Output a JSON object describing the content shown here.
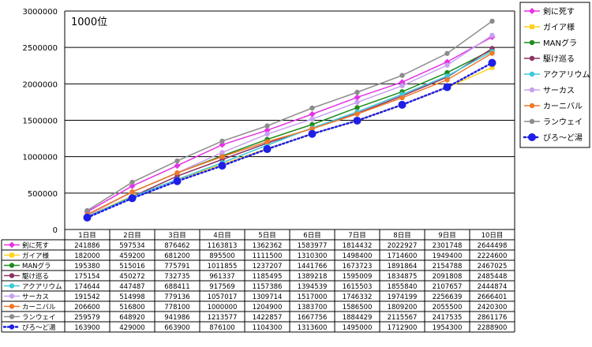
{
  "chart_data": {
    "type": "line",
    "annotation": "1000位",
    "categories": [
      "1日目",
      "2日目",
      "3日目",
      "4日目",
      "5日目",
      "6日目",
      "7日目",
      "8日目",
      "9日目",
      "10日目"
    ],
    "ylim": [
      0,
      3000000
    ],
    "yticks": [
      0,
      500000,
      1000000,
      1500000,
      2000000,
      2500000,
      3000000
    ],
    "ytick_labels": [
      "0",
      "500000",
      "1000000",
      "1500000",
      "2000000",
      "2500000",
      "3000000"
    ],
    "grid": true,
    "legend_position": "right",
    "series": [
      {
        "name": "剣に死す",
        "color": "#e632e6",
        "marker": "diamond",
        "dotted": false,
        "values": [
          241886,
          597534,
          876462,
          1163813,
          1362362,
          1583977,
          1814432,
          2022927,
          2301748,
          2644498
        ]
      },
      {
        "name": "ガイア様",
        "color": "#ffd21e",
        "marker": "square",
        "dotted": false,
        "values": [
          182000,
          459200,
          681200,
          895500,
          1111500,
          1310300,
          1498400,
          1714600,
          1949400,
          2224600
        ]
      },
      {
        "name": "MANグラ",
        "color": "#1e8c1e",
        "marker": "circle",
        "dotted": false,
        "values": [
          195380,
          515016,
          775791,
          1011855,
          1237207,
          1441766,
          1673723,
          1891864,
          2154788,
          2467025
        ]
      },
      {
        "name": "駆け巡る",
        "color": "#8c3264",
        "marker": "circle",
        "dotted": false,
        "values": [
          175154,
          450272,
          732735,
          961337,
          1185495,
          1389218,
          1595009,
          1834875,
          2091808,
          2485448
        ]
      },
      {
        "name": "アクアリウム",
        "color": "#3cc8dc",
        "marker": "circle",
        "dotted": false,
        "values": [
          174644,
          447487,
          688411,
          917569,
          1157386,
          1394539,
          1615503,
          1855840,
          2107657,
          2444874
        ]
      },
      {
        "name": "サーカス",
        "color": "#c8a0f0",
        "marker": "circle",
        "dotted": false,
        "values": [
          191542,
          514998,
          779136,
          1057017,
          1309714,
          1517000,
          1746332,
          1974199,
          2256639,
          2666401
        ]
      },
      {
        "name": "カーニバル",
        "color": "#f07828",
        "marker": "circle",
        "dotted": false,
        "values": [
          206600,
          516800,
          778100,
          1000000,
          1204900,
          1383700,
          1586500,
          1809200,
          2055500,
          2420300
        ]
      },
      {
        "name": "ランウェイ",
        "color": "#8c8c8c",
        "marker": "circle",
        "dotted": false,
        "values": [
          259579,
          648920,
          941986,
          1213577,
          1422857,
          1667756,
          1884429,
          2115567,
          2417535,
          2861176
        ]
      },
      {
        "name": "ぴろ～ど湯",
        "color": "#1e1ee6",
        "marker": "bigcircle",
        "dotted": true,
        "values": [
          163900,
          429000,
          663900,
          876100,
          1104300,
          1313600,
          1495000,
          1712900,
          1954300,
          2288900
        ]
      }
    ]
  }
}
